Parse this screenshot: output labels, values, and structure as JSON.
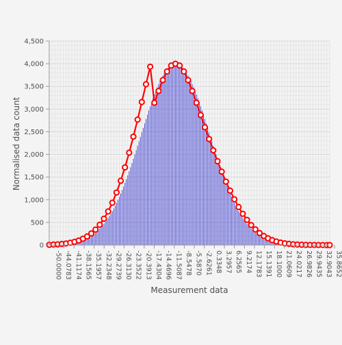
{
  "chart_data": {
    "type": "bar",
    "xlabel": "Measurement data",
    "ylabel": "Normalised data count",
    "ylim": [
      0,
      4500
    ],
    "yticks": [
      0,
      500,
      1000,
      1500,
      2000,
      2500,
      3000,
      3500,
      4000,
      4500
    ],
    "ytick_labels": [
      "0",
      "500",
      "1,000",
      "1,500",
      "2,000",
      "2,500",
      "3,000",
      "3,500",
      "4,000",
      "4,500"
    ],
    "x_tick_labels": [
      "-50.0000",
      "-44.0783",
      "-41.1174",
      "-38.1565",
      "-35.1957",
      "-32.2348",
      "-29.2739",
      "-26.3130",
      "-23.3522",
      "-20.3913",
      "-17.4304",
      "-14.4696",
      "-11.5087",
      "-8.5478",
      "-5.5870",
      "-2.6261",
      "0.3348",
      "3.2957",
      "6.2565",
      "9.2174",
      "12.1783",
      "15.1391",
      "18.1000",
      "21.0609",
      "24.0217",
      "26.9826",
      "29.9435",
      "32.9043",
      "35.8652"
    ],
    "grid": true,
    "series": [
      {
        "type": "bar",
        "color": "#3333cc",
        "mean": -5.0,
        "sigma": 12.3,
        "peak": 4000,
        "x_range": [
          -50.0,
          50.0
        ],
        "bin_count": 201
      },
      {
        "type": "line",
        "color": "#ff0000",
        "marker": "circle",
        "points": [
          [
            -50.0,
            6
          ],
          [
            -48.5,
            11
          ],
          [
            -47.0,
            16
          ],
          [
            -45.5,
            24
          ],
          [
            -44.0,
            35
          ],
          [
            -42.5,
            51
          ],
          [
            -41.0,
            72
          ],
          [
            -39.5,
            101
          ],
          [
            -38.0,
            140
          ],
          [
            -36.5,
            191
          ],
          [
            -35.0,
            257
          ],
          [
            -33.5,
            342
          ],
          [
            -32.0,
            449
          ],
          [
            -30.5,
            581
          ],
          [
            -29.0,
            742
          ],
          [
            -27.5,
            934
          ],
          [
            -26.0,
            1160
          ],
          [
            -24.5,
            1420
          ],
          [
            -23.0,
            1714
          ],
          [
            -21.5,
            2039
          ],
          [
            -20.0,
            2392
          ],
          [
            -18.5,
            2767
          ],
          [
            -17.0,
            3156
          ],
          [
            -15.5,
            3549
          ],
          [
            -14.0,
            3935
          ],
          [
            -12.5,
            3140
          ],
          [
            -11.0,
            3400
          ],
          [
            -9.5,
            3640
          ],
          [
            -8.0,
            3830
          ],
          [
            -6.5,
            3960
          ],
          [
            -5.0,
            4000
          ],
          [
            -3.5,
            3960
          ],
          [
            -2.0,
            3830
          ],
          [
            -0.5,
            3640
          ],
          [
            1.0,
            3400
          ],
          [
            2.5,
            3140
          ],
          [
            4.0,
            2870
          ],
          [
            5.5,
            2600
          ],
          [
            7.0,
            2340
          ],
          [
            8.5,
            2090
          ],
          [
            10.0,
            1850
          ],
          [
            11.5,
            1620
          ],
          [
            13.0,
            1400
          ],
          [
            14.5,
            1200
          ],
          [
            16.0,
            1010
          ],
          [
            17.5,
            840
          ],
          [
            19.0,
            690
          ],
          [
            20.5,
            556
          ],
          [
            22.0,
            441
          ],
          [
            23.5,
            345
          ],
          [
            25.0,
            265
          ],
          [
            26.5,
            200
          ],
          [
            28.0,
            149
          ],
          [
            29.5,
            109
          ],
          [
            31.0,
            78
          ],
          [
            32.5,
            55
          ],
          [
            34.0,
            38
          ],
          [
            35.5,
            26
          ],
          [
            37.0,
            17
          ],
          [
            38.5,
            11
          ],
          [
            40.0,
            7
          ],
          [
            41.5,
            4
          ],
          [
            43.0,
            3
          ],
          [
            44.5,
            2
          ],
          [
            46.0,
            1
          ],
          [
            47.5,
            1
          ],
          [
            49.0,
            0
          ],
          [
            50.0,
            0
          ]
        ]
      }
    ]
  }
}
